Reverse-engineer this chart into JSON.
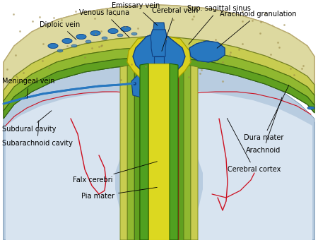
{
  "background": "#ffffff",
  "skull_color": "#ddd9a0",
  "skull_dots": "#b8aa70",
  "dura_color_outer": "#c8cc50",
  "dura_color_inner": "#b8c040",
  "dura_ec": "#708020",
  "arachnoid_color": "#90b830",
  "arachnoid_ec": "#507010",
  "pia_color": "#60a020",
  "pia_ec": "#306010",
  "brain_color": "#b8cce0",
  "brain_ec": "#7090b0",
  "sinus_color": "#2878c0",
  "sinus_ec": "#104080",
  "vessel_color": "#cc1020",
  "falx_yellow": "#dcd820",
  "falx_green": "#50a020",
  "falx_ec": "#206000",
  "red_line": "#cc1020",
  "font_size": 7.0,
  "labels": {
    "emissary_vein": "Emissary vein",
    "venous_lacuna": "Venous lacuna",
    "cerebral_vein": "Cerebral vein",
    "sup_sagittal": "Sup. sagittal sinus",
    "arachnoid_gran": "Arachnoid granulation",
    "diploic_vein": "Diploic vein",
    "meningeal_vein": "Meningeal vein",
    "subdural_cavity": "Subdural cavity",
    "subarachnoid_cavity": "Subarachnoid cavity",
    "dura_mater": "Dura mater",
    "arachnoid": "Arachnoid",
    "cerebral_cortex": "Cerebral cortex",
    "falx_cerebri": "Falx cerebri",
    "pia_mater": "Pia mater"
  }
}
